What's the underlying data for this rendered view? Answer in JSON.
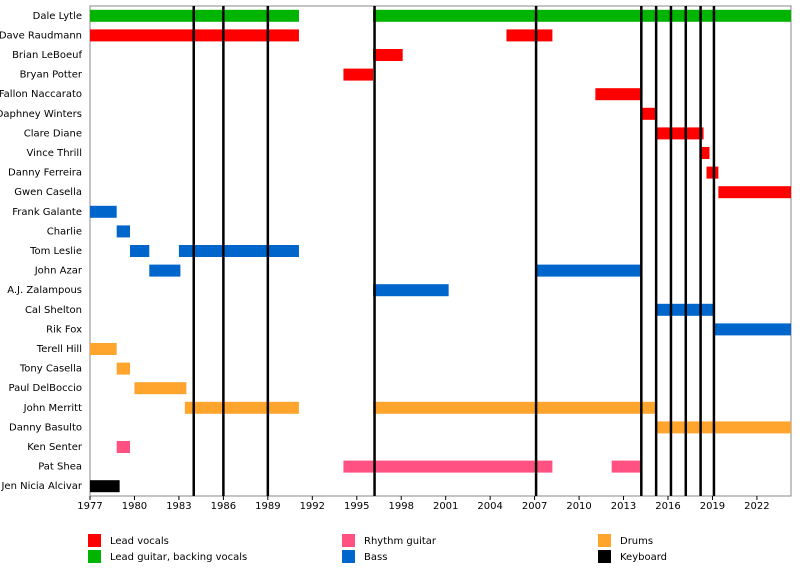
{
  "chart_data": {
    "type": "timeline",
    "categories": [
      "Dale Lytle",
      "Dave Raudmann",
      "Brian LeBoeuf",
      "Bryan Potter",
      "Fallon Naccarato",
      "Daphney Winters",
      "Clare Diane",
      "Vince Thrill",
      "Danny Ferreira",
      "Gwen Casella",
      "Frank Galante",
      "Charlie",
      "Tom Leslie",
      "John Azar",
      "A.J. Zalampous",
      "Cal Shelton",
      "Rik Fox",
      "Terell Hill",
      "Tony Casella",
      "Paul DelBoccio",
      "John Merritt",
      "Danny Basulto",
      "Ken Senter",
      "Pat Shea",
      "Jen Nicia Alcivar"
    ],
    "xlim": [
      1977,
      2024.3
    ],
    "xticks": [
      1977,
      1980,
      1983,
      1986,
      1989,
      1992,
      1995,
      1998,
      2001,
      2004,
      2007,
      2010,
      2013,
      2016,
      2019,
      2022
    ],
    "event_lines": [
      1984,
      1986,
      1989,
      1996.2,
      2007.1,
      2014.2,
      2015.2,
      2016.2,
      2017.2,
      2018.2,
      2019.1
    ],
    "series": [
      {
        "name": "Lead vocals",
        "color": "#ff0000",
        "values": [
          {
            "member": "Dave Raudmann",
            "start": 1977,
            "end": 1991.1
          },
          {
            "member": "Dave Raudmann",
            "start": 2005.1,
            "end": 2008.2
          },
          {
            "member": "Brian LeBoeuf",
            "start": 1996.1,
            "end": 1998.1
          },
          {
            "member": "Bryan Potter",
            "start": 1994.1,
            "end": 1996.1
          },
          {
            "member": "Fallon Naccarato",
            "start": 2011.1,
            "end": 2014.2
          },
          {
            "member": "Daphney Winters",
            "start": 2014.2,
            "end": 2015.2
          },
          {
            "member": "Clare Diane",
            "start": 2015.2,
            "end": 2018.4
          },
          {
            "member": "Vince Thrill",
            "start": 2018.2,
            "end": 2018.8
          },
          {
            "member": "Danny Ferreira",
            "start": 2018.6,
            "end": 2019.4
          },
          {
            "member": "Gwen Casella",
            "start": 2019.4,
            "end": 2024.3
          }
        ]
      },
      {
        "name": "Lead guitar, backing vocals",
        "color": "#00b400",
        "values": [
          {
            "member": "Dale Lytle",
            "start": 1977,
            "end": 1991.1
          },
          {
            "member": "Dale Lytle",
            "start": 1996.1,
            "end": 2024.3
          }
        ]
      },
      {
        "name": "Rhythm guitar",
        "color": "#ff5282",
        "values": [
          {
            "member": "Ken Senter",
            "start": 1978.8,
            "end": 1979.7
          },
          {
            "member": "Pat Shea",
            "start": 1994.1,
            "end": 2008.2
          },
          {
            "member": "Pat Shea",
            "start": 2012.2,
            "end": 2014.2
          }
        ]
      },
      {
        "name": "Bass",
        "color": "#0066cc",
        "values": [
          {
            "member": "Frank Galante",
            "start": 1977,
            "end": 1978.8
          },
          {
            "member": "Charlie",
            "start": 1978.8,
            "end": 1979.7
          },
          {
            "member": "Tom Leslie",
            "start": 1979.7,
            "end": 1981.0
          },
          {
            "member": "Tom Leslie",
            "start": 1983.0,
            "end": 1991.1
          },
          {
            "member": "John Azar",
            "start": 1981.0,
            "end": 1983.1
          },
          {
            "member": "John Azar",
            "start": 2007.1,
            "end": 2014.2
          },
          {
            "member": "A.J. Zalampous",
            "start": 1996.1,
            "end": 2001.2
          },
          {
            "member": "Cal Shelton",
            "start": 2015.2,
            "end": 2019.1
          },
          {
            "member": "Rik Fox",
            "start": 2019.1,
            "end": 2024.3
          }
        ]
      },
      {
        "name": "Drums",
        "color": "#ffa52e",
        "values": [
          {
            "member": "Terell Hill",
            "start": 1977,
            "end": 1978.8
          },
          {
            "member": "Tony Casella",
            "start": 1978.8,
            "end": 1979.7
          },
          {
            "member": "Paul DelBoccio",
            "start": 1980.0,
            "end": 1983.5
          },
          {
            "member": "John Merritt",
            "start": 1983.4,
            "end": 1991.1
          },
          {
            "member": "John Merritt",
            "start": 1996.1,
            "end": 2015.2
          },
          {
            "member": "Danny Basulto",
            "start": 2015.2,
            "end": 2024.3
          }
        ]
      },
      {
        "name": "Keyboard",
        "color": "#000000",
        "values": [
          {
            "member": "Jen Nicia Alcivar",
            "start": 1977,
            "end": 1979.0
          }
        ]
      }
    ]
  }
}
